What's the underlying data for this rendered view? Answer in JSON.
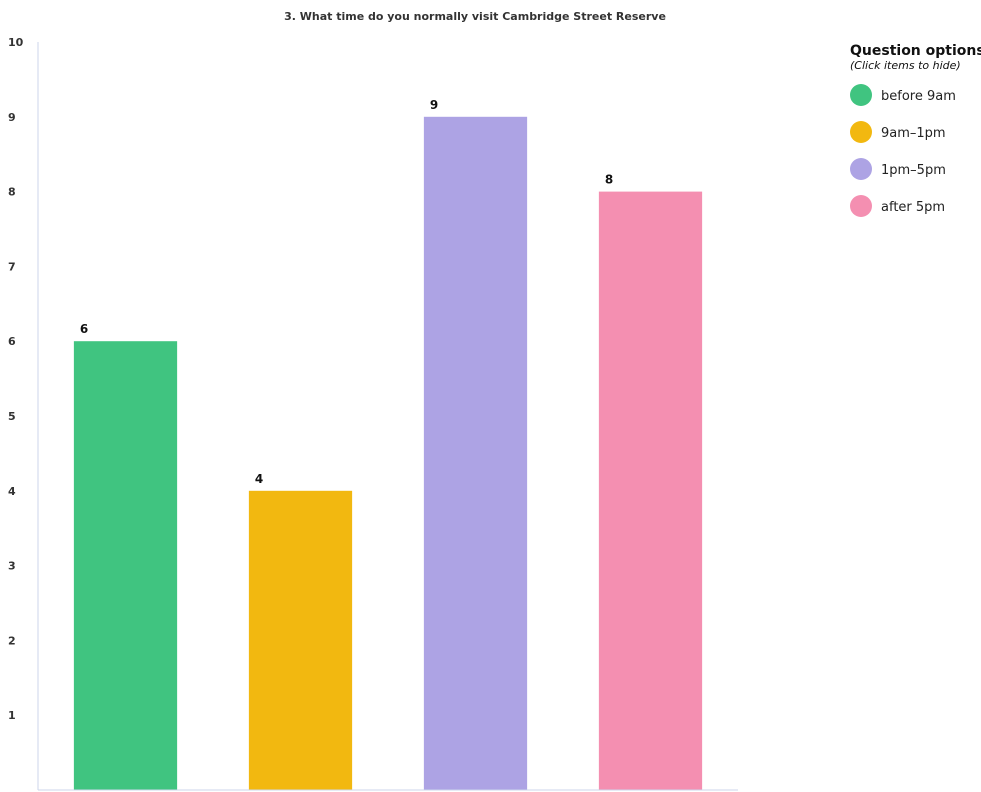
{
  "chart_data": {
    "type": "bar",
    "title": "3. What time do you normally visit Cambridge Street Reserve",
    "categories": [
      "before 9am",
      "9am–1pm",
      "1pm–5pm",
      "after 5pm"
    ],
    "values": [
      6,
      4,
      9,
      8
    ],
    "colors": [
      "#40c480",
      "#f2b810",
      "#ada3e4",
      "#f48fb1"
    ],
    "ylim": [
      0,
      10
    ],
    "yticks": [
      1,
      2,
      3,
      4,
      5,
      6,
      7,
      8,
      9,
      10
    ],
    "xlabel": "",
    "ylabel": "",
    "grid": false,
    "legend_position": "top-right",
    "legend": {
      "title": "Question options",
      "subtitle": "(Click items to hide)"
    }
  }
}
